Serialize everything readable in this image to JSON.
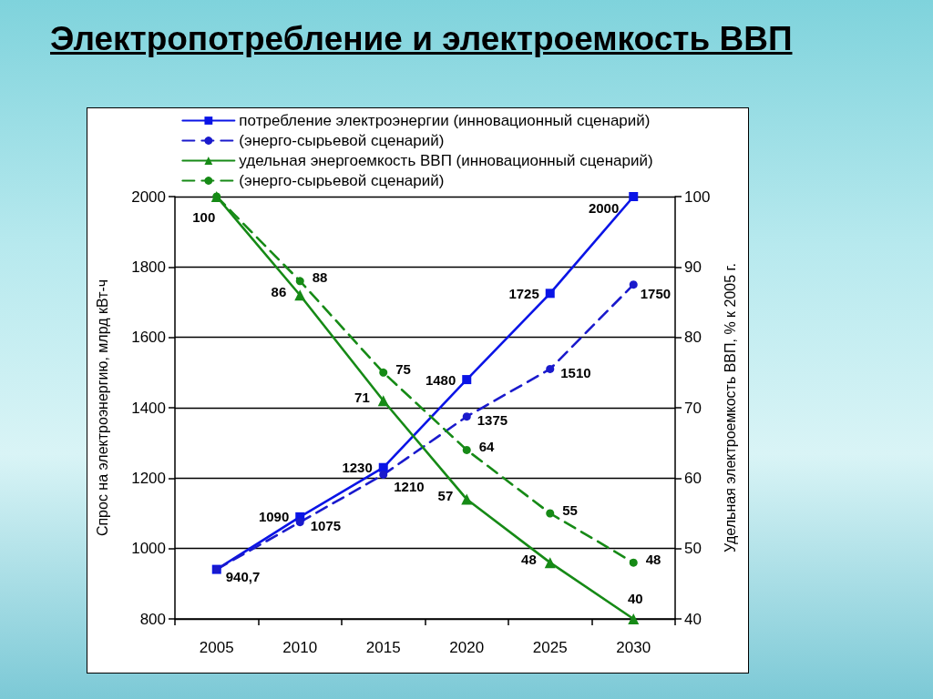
{
  "chart_data": {
    "type": "line",
    "title": "Электропотребление и электроемкость ВВП",
    "ylabel": "Спрос на электроэнергию, млрд кВт-ч",
    "y2label": "Удельная электроемкость ВВП, % к 2005 г.",
    "categories": [
      "2005",
      "2010",
      "2015",
      "2020",
      "2025",
      "2030"
    ],
    "series": [
      {
        "name": "потребление электроэнергии (инновационный сценарий)",
        "color": "#0a14e6",
        "values": [
          940.7,
          1090,
          1230,
          1480,
          1725,
          2000
        ],
        "value_labels": [
          "940,7",
          "1090",
          "1230",
          "1480",
          "1725",
          "2000"
        ],
        "marker": "square",
        "line_style": "solid"
      },
      {
        "name": "(энерго-сырьевой сценарий)",
        "color": "#1a1acc",
        "values": [
          940.7,
          1075,
          1210,
          1375,
          1510,
          1750
        ],
        "value_labels": [
          null,
          "1075",
          "1210",
          "1375",
          "1510",
          "1750"
        ],
        "marker": "circle",
        "line_style": "dashed"
      },
      {
        "name": "удельная энергоемкость ВВП (инновационный сценарий)",
        "color": "#168a16",
        "axis": "y2",
        "values": [
          100,
          86,
          71,
          57,
          48,
          40
        ],
        "value_labels": [
          "100",
          "86",
          "71",
          "57",
          "48",
          "40"
        ],
        "marker": "triangle",
        "line_style": "solid"
      },
      {
        "name": "(энерго-сырьевой сценарий)",
        "color": "#168a16",
        "axis": "y2",
        "values": [
          100,
          88,
          75,
          64,
          55,
          48
        ],
        "value_labels": [
          null,
          "88",
          "75",
          "64",
          "55",
          "48"
        ],
        "marker": "circle",
        "line_style": "dashed"
      }
    ],
    "ylim": [
      800,
      2000
    ],
    "yticks": [
      800,
      1000,
      1200,
      1400,
      1600,
      1800,
      2000
    ],
    "y2lim": [
      40,
      100
    ],
    "y2ticks": [
      40,
      50,
      60,
      70,
      80,
      90,
      100
    ],
    "grid": "y",
    "legend": "top"
  }
}
